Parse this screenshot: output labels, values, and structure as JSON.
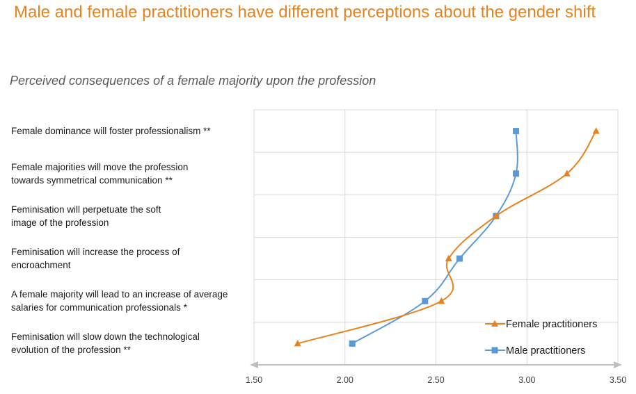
{
  "title": "Male and female practitioners have different perceptions about the gender shift",
  "subtitle": "Perceived consequences of a female majority upon the profession",
  "colors": {
    "title": "#e8821e",
    "female": "#e8821e",
    "male": "#5b9bd5",
    "grid": "#d9d9d9",
    "axis": "#bfbfbf"
  },
  "chart_data": {
    "type": "line",
    "orientation": "horizontal",
    "categories": [
      [
        "Female dominance will foster professionalism **"
      ],
      [
        "Female majorities will move the profession",
        "towards symmetrical communication **"
      ],
      [
        "Feminisation will perpetuate the soft",
        "image of the profession"
      ],
      [
        "Feminisation will increase the process of",
        "encroachment"
      ],
      [
        "A female majority will lead to an increase of average",
        "salaries for communication professionals *"
      ],
      [
        "Feminisation will slow down the technological",
        "evolution of the profession **"
      ]
    ],
    "series": [
      {
        "name": "Female practitioners",
        "marker": "triangle",
        "values": [
          3.38,
          3.22,
          2.83,
          2.57,
          2.53,
          1.74
        ]
      },
      {
        "name": "Male practitioners",
        "marker": "square",
        "values": [
          2.94,
          2.94,
          2.83,
          2.63,
          2.44,
          2.04
        ]
      }
    ],
    "xlim": [
      1.5,
      3.5
    ],
    "xticks": [
      "1.50",
      "2.00",
      "2.50",
      "3.00",
      "3.50"
    ],
    "grid": true,
    "legend": "bottom-right",
    "smooth": true
  }
}
